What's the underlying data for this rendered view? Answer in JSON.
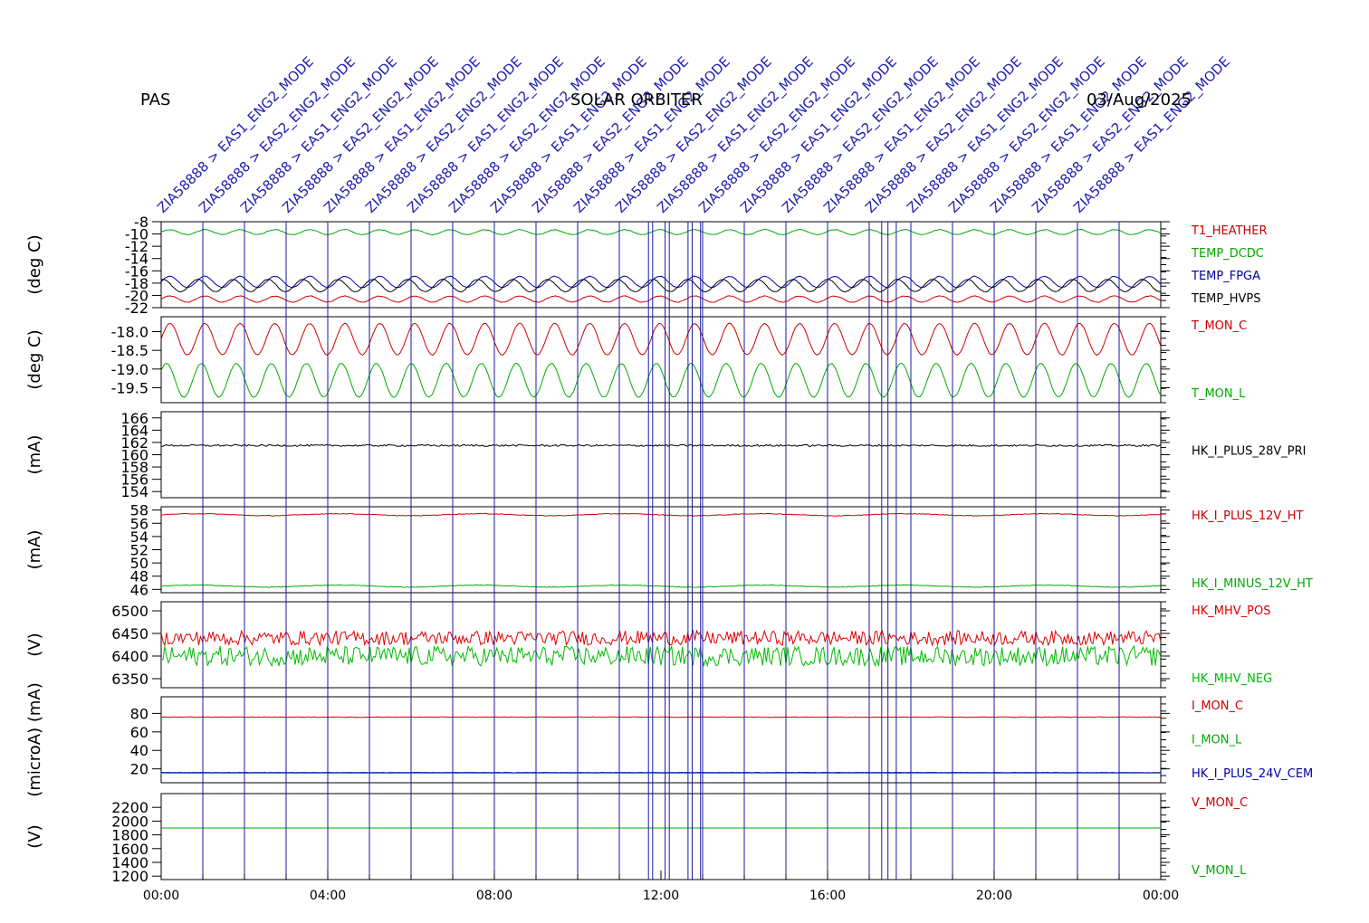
{
  "header": {
    "left": "PAS",
    "center": "SOLAR ORBITER",
    "right": "03/Aug/2025"
  },
  "chart_data": {
    "type": "line",
    "x_tick_labels": [
      "00:00",
      "04:00",
      "08:00",
      "12:00",
      "16:00",
      "20:00",
      "00:00"
    ],
    "x_range_hours": [
      0,
      24
    ],
    "event_lines_hours": [
      1,
      2,
      3,
      4,
      5,
      6,
      7,
      8,
      9,
      10,
      11,
      11.7,
      11.8,
      12.1,
      12.2,
      12.65,
      12.75,
      12.95,
      13,
      14,
      15,
      16,
      17,
      17.3,
      17.45,
      17.65,
      18,
      19,
      20,
      21,
      22,
      23
    ],
    "event_labels": [
      {
        "hour": 1,
        "text": "ZIA58888 > EAS1_ENG2_MODE"
      },
      {
        "hour": 2,
        "text": "ZIA58888 > EAS2_ENG2_MODE"
      },
      {
        "hour": 3,
        "text": "ZIA58888 > EAS1_ENG2_MODE"
      },
      {
        "hour": 4,
        "text": "ZIA58888 > EAS2_ENG2_MODE"
      },
      {
        "hour": 5,
        "text": "ZIA58888 > EAS1_ENG2_MODE"
      },
      {
        "hour": 6,
        "text": "ZIA58888 > EAS2_ENG2_MODE"
      },
      {
        "hour": 7,
        "text": "ZIA58888 > EAS1_ENG2_MODE"
      },
      {
        "hour": 8,
        "text": "ZIA58888 > EAS2_ENG2_MODE"
      },
      {
        "hour": 9,
        "text": "ZIA58888 > EAS1_ENG2_MODE"
      },
      {
        "hour": 10,
        "text": "ZIA58888 > EAS2_ENG2_MODE"
      },
      {
        "hour": 11,
        "text": "ZIA58888 > EAS1_ENG2_MODE"
      },
      {
        "hour": 12,
        "text": "ZIA58888 > EAS2_ENG2_MODE"
      },
      {
        "hour": 13,
        "text": "ZIA58888 > EAS1_ENG2_MODE"
      },
      {
        "hour": 14,
        "text": "ZIA58888 > EAS2_ENG2_MODE"
      },
      {
        "hour": 15,
        "text": "ZIA58888 > EAS1_ENG2_MODE"
      },
      {
        "hour": 16,
        "text": "ZIA58888 > EAS2_ENG2_MODE"
      },
      {
        "hour": 17,
        "text": "ZIA58888 > EAS1_ENG2_MODE"
      },
      {
        "hour": 18,
        "text": "ZIA58888 > EAS2_ENG2_MODE"
      },
      {
        "hour": 19,
        "text": "ZIA58888 > EAS1_ENG2_MODE"
      },
      {
        "hour": 20,
        "text": "ZIA58888 > EAS2_ENG2_MODE"
      },
      {
        "hour": 21,
        "text": "ZIA58888 > EAS1_ENG2_MODE"
      },
      {
        "hour": 22,
        "text": "ZIA58888 > EAS2_ENG2_MODE"
      },
      {
        "hour": 23,
        "text": "ZIA58888 > EAS1_ENG2_MODE"
      }
    ],
    "panels": [
      {
        "unit": "(deg C)",
        "ylim": [
          -22,
          -8
        ],
        "yticks": [
          -8,
          -10,
          -12,
          -14,
          -16,
          -18,
          -20,
          -22
        ],
        "series": [
          {
            "name": "T1_HEATHER",
            "color": "#cc0000",
            "base": -20.6,
            "amp": 0.5,
            "period": 0.84,
            "noise": 0.05
          },
          {
            "name": "TEMP_DCDC",
            "color": "#00aa00",
            "base": -9.7,
            "amp": 0.4,
            "period": 0.84,
            "noise": 0.05
          },
          {
            "name": "TEMP_FPGA",
            "color": "#0000aa",
            "base": -17.8,
            "amp": 0.9,
            "period": 0.84,
            "noise": 0.05
          },
          {
            "name": "TEMP_HVPS",
            "color": "#000000",
            "base": -18.4,
            "amp": 1.0,
            "period": 0.84,
            "noise": 0.05,
            "phase": 0.2
          }
        ]
      },
      {
        "unit": "(deg C)",
        "ylim": [
          -19.9,
          -17.6
        ],
        "yticks": [
          -18.0,
          -18.5,
          -19.0,
          -19.5
        ],
        "tick_labels": [
          "-18.0",
          "-18.5",
          "-19.0",
          "-19.5"
        ],
        "series": [
          {
            "name": "T_MON_C",
            "color": "#cc0000",
            "base": -18.2,
            "amp": 0.42,
            "period": 0.84,
            "noise": 0.01
          },
          {
            "name": "T_MON_L",
            "color": "#00aa00",
            "base": -19.3,
            "amp": 0.45,
            "period": 0.84,
            "noise": 0.01,
            "phase": 0.1
          }
        ]
      },
      {
        "unit": "(mA)",
        "ylim": [
          153,
          167
        ],
        "yticks": [
          166,
          164,
          162,
          160,
          158,
          156,
          154
        ],
        "series": [
          {
            "name": "HK_I_PLUS_28V_PRI",
            "color": "#000000",
            "base": 161.5,
            "amp": 0,
            "period": 1,
            "noise": 0.15
          }
        ]
      },
      {
        "unit": "(mA)",
        "ylim": [
          45.5,
          58.5
        ],
        "yticks": [
          58,
          56,
          54,
          52,
          50,
          48,
          46
        ],
        "series": [
          {
            "name": "HK_I_PLUS_12V_HT",
            "color": "#cc0000",
            "base": 57.3,
            "amp": 0.15,
            "period": 3.4,
            "noise": 0.05
          },
          {
            "name": "HK_I_MINUS_12V_HT",
            "color": "#00aa00",
            "base": 46.5,
            "amp": 0.15,
            "period": 3.4,
            "noise": 0.05
          }
        ]
      },
      {
        "unit": "(V)",
        "ylim": [
          6330,
          6520
        ],
        "yticks": [
          6500,
          6450,
          6400,
          6350
        ],
        "series": [
          {
            "name": "HK_MHV_POS",
            "color": "#dd0000",
            "base": 6440,
            "amp": 0,
            "period": 1,
            "noise": 16
          },
          {
            "name": "HK_MHV_NEG",
            "color": "#00bb00",
            "base": 6400,
            "amp": 0,
            "period": 1,
            "noise": 22
          }
        ]
      },
      {
        "unit": "(microA) (mA)",
        "ylim": [
          5,
          98
        ],
        "yticks": [
          80,
          60,
          40,
          20
        ],
        "series": [
          {
            "name": "I_MON_C",
            "color": "#cc0000",
            "base": 76,
            "amp": 0,
            "period": 1,
            "noise": 0.3
          },
          {
            "name": "I_MON_L",
            "color": "#00aa00",
            "base": 15.5,
            "amp": 0,
            "period": 1,
            "noise": 0.1
          },
          {
            "name": "HK_I_PLUS_24V_CEM",
            "color": "#0000aa",
            "base": 16,
            "amp": 0,
            "period": 1,
            "noise": 0.2
          }
        ]
      },
      {
        "unit": "(V)",
        "ylim": [
          1150,
          2400
        ],
        "yticks": [
          2200,
          2000,
          1800,
          1600,
          1400,
          1200
        ],
        "series": [
          {
            "name": "V_MON_C",
            "color": "#cc0000",
            "base": 1900,
            "amp": 0,
            "period": 1,
            "noise": 0.5
          },
          {
            "name": "V_MON_L",
            "color": "#00aa00",
            "base": 1900,
            "amp": 0,
            "period": 1,
            "noise": 0.5
          }
        ]
      }
    ]
  }
}
